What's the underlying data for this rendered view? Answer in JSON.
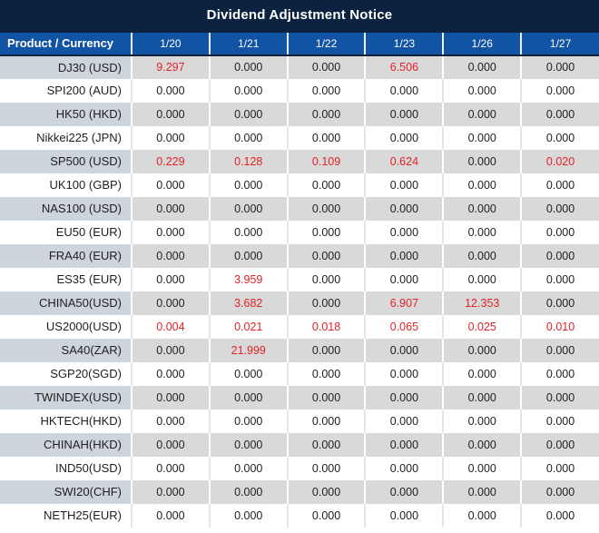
{
  "title": "Dividend Adjustment Notice",
  "colors": {
    "title_bg": "#0b2240",
    "header_bg": "#1254a4",
    "header_text": "#ffffff",
    "row_gray": "#d9d9d9",
    "row_gray_label": "#ced4db",
    "row_white": "#ffffff",
    "text": "#1f1f1f",
    "highlight_red": "#e32227"
  },
  "chart_data": {
    "type": "table",
    "title": "Dividend Adjustment Notice",
    "columns": [
      "Product / Currency",
      "1/20",
      "1/21",
      "1/22",
      "1/23",
      "1/26",
      "1/27"
    ],
    "rows": [
      {
        "product": "DJ30 (USD)",
        "values": [
          "9.297",
          "0.000",
          "0.000",
          "6.506",
          "0.000",
          "0.000"
        ],
        "red": [
          true,
          false,
          false,
          true,
          false,
          false
        ]
      },
      {
        "product": "SPI200 (AUD)",
        "values": [
          "0.000",
          "0.000",
          "0.000",
          "0.000",
          "0.000",
          "0.000"
        ],
        "red": [
          false,
          false,
          false,
          false,
          false,
          false
        ]
      },
      {
        "product": "HK50 (HKD)",
        "values": [
          "0.000",
          "0.000",
          "0.000",
          "0.000",
          "0.000",
          "0.000"
        ],
        "red": [
          false,
          false,
          false,
          false,
          false,
          false
        ]
      },
      {
        "product": "Nikkei225 (JPN)",
        "values": [
          "0.000",
          "0.000",
          "0.000",
          "0.000",
          "0.000",
          "0.000"
        ],
        "red": [
          false,
          false,
          false,
          false,
          false,
          false
        ]
      },
      {
        "product": "SP500 (USD)",
        "values": [
          "0.229",
          "0.128",
          "0.109",
          "0.624",
          "0.000",
          "0.020"
        ],
        "red": [
          true,
          true,
          true,
          true,
          false,
          true
        ]
      },
      {
        "product": "UK100 (GBP)",
        "values": [
          "0.000",
          "0.000",
          "0.000",
          "0.000",
          "0.000",
          "0.000"
        ],
        "red": [
          false,
          false,
          false,
          false,
          false,
          false
        ]
      },
      {
        "product": "NAS100 (USD)",
        "values": [
          "0.000",
          "0.000",
          "0.000",
          "0.000",
          "0.000",
          "0.000"
        ],
        "red": [
          false,
          false,
          false,
          false,
          false,
          false
        ]
      },
      {
        "product": "EU50 (EUR)",
        "values": [
          "0.000",
          "0.000",
          "0.000",
          "0.000",
          "0.000",
          "0.000"
        ],
        "red": [
          false,
          false,
          false,
          false,
          false,
          false
        ]
      },
      {
        "product": "FRA40 (EUR)",
        "values": [
          "0.000",
          "0.000",
          "0.000",
          "0.000",
          "0.000",
          "0.000"
        ],
        "red": [
          false,
          false,
          false,
          false,
          false,
          false
        ]
      },
      {
        "product": "ES35 (EUR)",
        "values": [
          "0.000",
          "3.959",
          "0.000",
          "0.000",
          "0.000",
          "0.000"
        ],
        "red": [
          false,
          true,
          false,
          false,
          false,
          false
        ]
      },
      {
        "product": "CHINA50(USD)",
        "values": [
          "0.000",
          "3.682",
          "0.000",
          "6.907",
          "12.353",
          "0.000"
        ],
        "red": [
          false,
          true,
          false,
          true,
          true,
          false
        ]
      },
      {
        "product": "US2000(USD)",
        "values": [
          "0.004",
          "0.021",
          "0.018",
          "0.065",
          "0.025",
          "0.010"
        ],
        "red": [
          true,
          true,
          true,
          true,
          true,
          true
        ]
      },
      {
        "product": "SA40(ZAR)",
        "values": [
          "0.000",
          "21.999",
          "0.000",
          "0.000",
          "0.000",
          "0.000"
        ],
        "red": [
          false,
          true,
          false,
          false,
          false,
          false
        ]
      },
      {
        "product": "SGP20(SGD)",
        "values": [
          "0.000",
          "0.000",
          "0.000",
          "0.000",
          "0.000",
          "0.000"
        ],
        "red": [
          false,
          false,
          false,
          false,
          false,
          false
        ]
      },
      {
        "product": "TWINDEX(USD)",
        "values": [
          "0.000",
          "0.000",
          "0.000",
          "0.000",
          "0.000",
          "0.000"
        ],
        "red": [
          false,
          false,
          false,
          false,
          false,
          false
        ]
      },
      {
        "product": "HKTECH(HKD)",
        "values": [
          "0.000",
          "0.000",
          "0.000",
          "0.000",
          "0.000",
          "0.000"
        ],
        "red": [
          false,
          false,
          false,
          false,
          false,
          false
        ]
      },
      {
        "product": "CHINAH(HKD)",
        "values": [
          "0.000",
          "0.000",
          "0.000",
          "0.000",
          "0.000",
          "0.000"
        ],
        "red": [
          false,
          false,
          false,
          false,
          false,
          false
        ]
      },
      {
        "product": "IND50(USD)",
        "values": [
          "0.000",
          "0.000",
          "0.000",
          "0.000",
          "0.000",
          "0.000"
        ],
        "red": [
          false,
          false,
          false,
          false,
          false,
          false
        ]
      },
      {
        "product": "SWI20(CHF)",
        "values": [
          "0.000",
          "0.000",
          "0.000",
          "0.000",
          "0.000",
          "0.000"
        ],
        "red": [
          false,
          false,
          false,
          false,
          false,
          false
        ]
      },
      {
        "product": "NETH25(EUR)",
        "values": [
          "0.000",
          "0.000",
          "0.000",
          "0.000",
          "0.000",
          "0.000"
        ],
        "red": [
          false,
          false,
          false,
          false,
          false,
          false
        ]
      }
    ]
  }
}
